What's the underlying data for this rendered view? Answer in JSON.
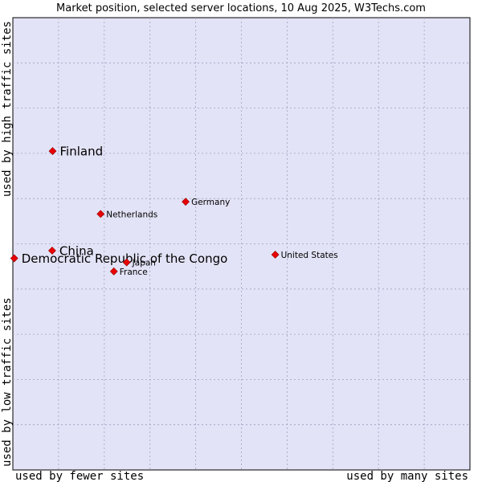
{
  "chart_data": {
    "type": "scatter",
    "title": "Market position, selected server locations, 10 Aug 2025, W3Techs.com",
    "xlabel_left": "used by fewer sites",
    "xlabel_right": "used by many sites",
    "ylabel_low": "used by low traffic sites",
    "ylabel_high": "used by high traffic sites",
    "xlim": [
      0,
      100
    ],
    "ylim": [
      0,
      100
    ],
    "grid": true,
    "colors": {
      "background": "#e3e3f7",
      "grid": "#a0a0c0",
      "point": "#e80000"
    },
    "points": [
      {
        "label": "Finland",
        "x": 8.7,
        "y": 70.5,
        "size": "large"
      },
      {
        "label": "Germany",
        "x": 37.8,
        "y": 59.3,
        "size": "small"
      },
      {
        "label": "Netherlands",
        "x": 19.2,
        "y": 56.6,
        "size": "small"
      },
      {
        "label": "China",
        "x": 8.6,
        "y": 48.5,
        "size": "large"
      },
      {
        "label": "United States",
        "x": 57.4,
        "y": 47.6,
        "size": "small"
      },
      {
        "label": "Democratic Republic of the Congo",
        "x": 0.3,
        "y": 46.8,
        "size": "large"
      },
      {
        "label": "Japan",
        "x": 24.9,
        "y": 45.9,
        "size": "small"
      },
      {
        "label": "France",
        "x": 22.1,
        "y": 43.9,
        "size": "small"
      }
    ]
  }
}
